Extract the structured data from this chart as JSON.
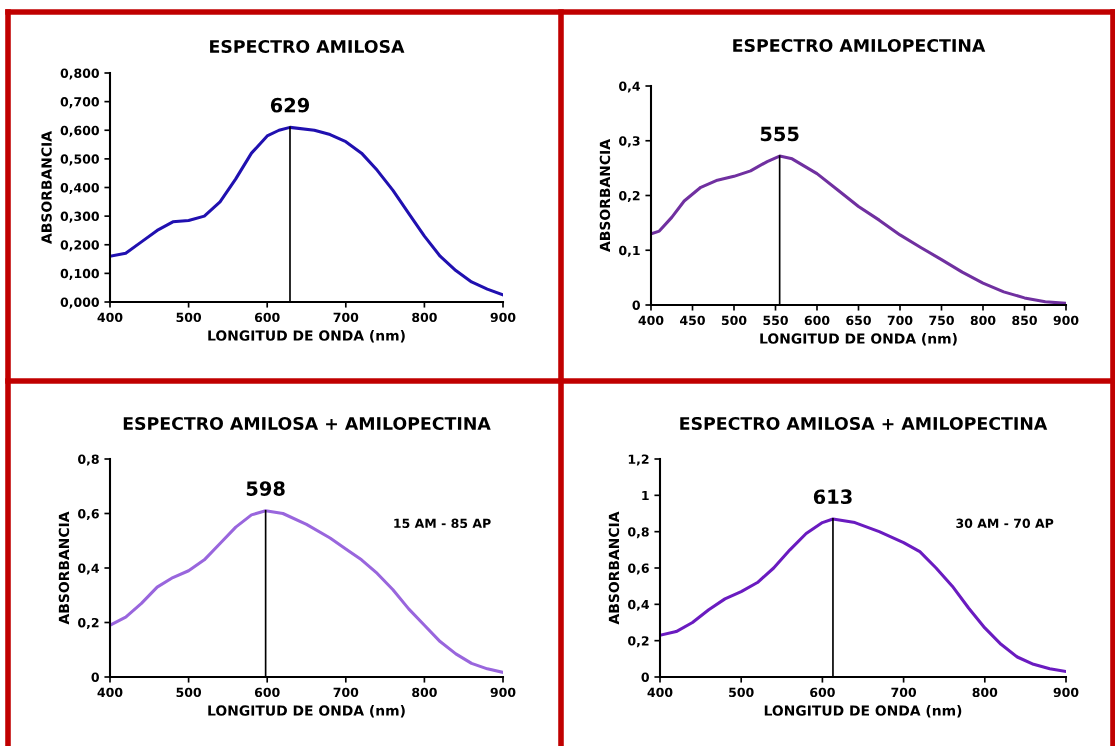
{
  "chart_data": [
    {
      "type": "line",
      "title": "ESPECTRO AMILOSA",
      "xlabel": "LONGITUD DE ONDA (nm)",
      "ylabel": "ABSORBANCIA",
      "x": [
        400,
        420,
        440,
        460,
        480,
        500,
        520,
        540,
        560,
        580,
        600,
        615,
        629,
        660,
        680,
        700,
        720,
        740,
        760,
        780,
        800,
        820,
        840,
        860,
        880,
        900
      ],
      "series": [
        {
          "color": "#2010b0",
          "values": [
            0.16,
            0.17,
            0.21,
            0.25,
            0.28,
            0.285,
            0.3,
            0.35,
            0.43,
            0.52,
            0.58,
            0.6,
            0.61,
            0.6,
            0.585,
            0.56,
            0.52,
            0.46,
            0.39,
            0.31,
            0.23,
            0.16,
            0.11,
            0.07,
            0.045,
            0.025
          ]
        }
      ],
      "xlim": [
        400,
        900
      ],
      "xticks": [
        400,
        500,
        600,
        700,
        800,
        900
      ],
      "ylim": [
        0,
        0.8
      ],
      "yticks": [
        {
          "value": 0,
          "label": "0,000"
        },
        {
          "value": 0.1,
          "label": "0,100"
        },
        {
          "value": 0.2,
          "label": "0,200"
        },
        {
          "value": 0.3,
          "label": "0,300"
        },
        {
          "value": 0.4,
          "label": "0,400"
        },
        {
          "value": 0.5,
          "label": "0,500"
        },
        {
          "value": 0.6,
          "label": "0,600"
        },
        {
          "value": 0.7,
          "label": "0,700"
        },
        {
          "value": 0.8,
          "label": "0,800"
        }
      ],
      "ref_lines": [
        {
          "axis": "x",
          "value": 629,
          "label": "629",
          "color": "#000000"
        }
      ],
      "grid": false,
      "legend": false,
      "marker": "none",
      "line_style": "solid"
    },
    {
      "type": "line",
      "title": "ESPECTRO AMILOPECTINA",
      "xlabel": "LONGITUD DE ONDA (nm)",
      "ylabel": "ABSORBANCIA",
      "x": [
        400,
        410,
        425,
        440,
        460,
        480,
        500,
        520,
        540,
        555,
        570,
        600,
        625,
        650,
        675,
        700,
        725,
        750,
        775,
        800,
        825,
        850,
        875,
        900
      ],
      "series": [
        {
          "color": "#7030a0",
          "values": [
            0.13,
            0.135,
            0.16,
            0.19,
            0.215,
            0.228,
            0.235,
            0.245,
            0.262,
            0.272,
            0.267,
            0.24,
            0.21,
            0.18,
            0.155,
            0.128,
            0.105,
            0.083,
            0.06,
            0.04,
            0.024,
            0.013,
            0.006,
            0.003
          ]
        }
      ],
      "xlim": [
        400,
        900
      ],
      "xticks": [
        400,
        450,
        500,
        550,
        600,
        650,
        700,
        750,
        800,
        850,
        900
      ],
      "ylim": [
        0,
        0.4
      ],
      "yticks": [
        {
          "value": 0,
          "label": "0"
        },
        {
          "value": 0.1,
          "label": "0,1"
        },
        {
          "value": 0.2,
          "label": "0,2"
        },
        {
          "value": 0.3,
          "label": "0,3"
        },
        {
          "value": 0.4,
          "label": "0,4"
        }
      ],
      "ref_lines": [
        {
          "axis": "x",
          "value": 555,
          "label": "555",
          "color": "#000000"
        }
      ],
      "grid": false,
      "legend": false,
      "marker": "none",
      "line_style": "solid"
    },
    {
      "type": "line",
      "title": "ESPECTRO AMILOSA + AMILOPECTINA",
      "xlabel": "LONGITUD DE ONDA (nm)",
      "ylabel": "ABSORBANCIA",
      "annotations": [
        "15 AM - 85 AP"
      ],
      "x": [
        400,
        420,
        440,
        460,
        480,
        500,
        520,
        540,
        560,
        580,
        598,
        620,
        650,
        680,
        700,
        720,
        740,
        760,
        780,
        800,
        820,
        840,
        860,
        880,
        900
      ],
      "series": [
        {
          "color": "#9966dd",
          "values": [
            0.19,
            0.22,
            0.27,
            0.33,
            0.365,
            0.39,
            0.43,
            0.49,
            0.55,
            0.595,
            0.61,
            0.6,
            0.56,
            0.51,
            0.47,
            0.43,
            0.38,
            0.32,
            0.25,
            0.19,
            0.13,
            0.085,
            0.05,
            0.03,
            0.017
          ]
        }
      ],
      "xlim": [
        400,
        900
      ],
      "xticks": [
        400,
        500,
        600,
        700,
        800,
        900
      ],
      "ylim": [
        0,
        0.8
      ],
      "yticks": [
        {
          "value": 0,
          "label": "0"
        },
        {
          "value": 0.2,
          "label": "0,2"
        },
        {
          "value": 0.4,
          "label": "0,4"
        },
        {
          "value": 0.6,
          "label": "0,6"
        },
        {
          "value": 0.8,
          "label": "0,8"
        }
      ],
      "ref_lines": [
        {
          "axis": "x",
          "value": 598,
          "label": "598",
          "color": "#000000"
        }
      ],
      "grid": false,
      "legend": false,
      "marker": "none",
      "line_style": "solid"
    },
    {
      "type": "line",
      "title": "ESPECTRO AMILOSA + AMILOPECTINA",
      "xlabel": "LONGITUD DE ONDA (nm)",
      "ylabel": "ABSORBANCIA",
      "annotations": [
        "30 AM - 70 AP"
      ],
      "x": [
        400,
        420,
        440,
        460,
        480,
        500,
        520,
        540,
        560,
        580,
        600,
        613,
        640,
        670,
        700,
        720,
        740,
        760,
        780,
        800,
        820,
        840,
        860,
        880,
        900
      ],
      "series": [
        {
          "color": "#6a1bc0",
          "values": [
            0.23,
            0.25,
            0.3,
            0.37,
            0.43,
            0.47,
            0.52,
            0.6,
            0.7,
            0.79,
            0.85,
            0.87,
            0.85,
            0.8,
            0.74,
            0.69,
            0.6,
            0.5,
            0.38,
            0.27,
            0.18,
            0.11,
            0.07,
            0.045,
            0.03
          ]
        }
      ],
      "xlim": [
        400,
        900
      ],
      "xticks": [
        400,
        500,
        600,
        700,
        800,
        900
      ],
      "ylim": [
        0,
        1.2
      ],
      "yticks": [
        {
          "value": 0,
          "label": "0"
        },
        {
          "value": 0.2,
          "label": "0,2"
        },
        {
          "value": 0.4,
          "label": "0,4"
        },
        {
          "value": 0.6,
          "label": "0,6"
        },
        {
          "value": 0.8,
          "label": "0,8"
        },
        {
          "value": 1,
          "label": "1"
        },
        {
          "value": 1.2,
          "label": "1,2"
        }
      ],
      "ref_lines": [
        {
          "axis": "x",
          "value": 613,
          "label": "613",
          "color": "#000000"
        }
      ],
      "grid": false,
      "legend": false,
      "marker": "none",
      "line_style": "solid"
    }
  ]
}
